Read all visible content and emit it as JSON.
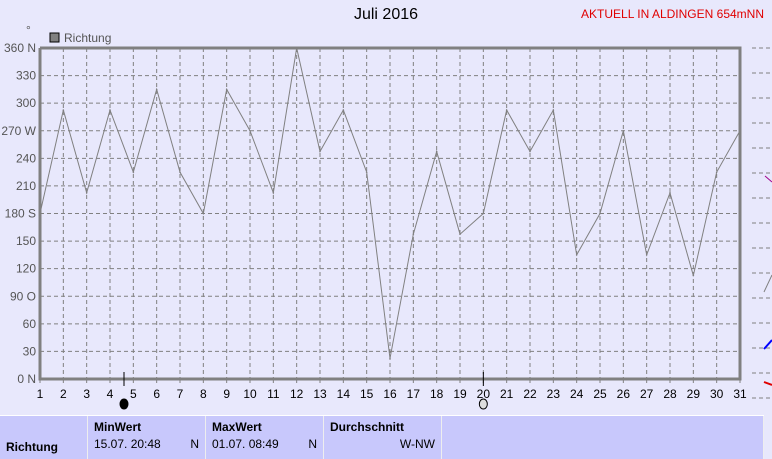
{
  "title": "Juli 2016",
  "station": "AKTUELL IN ALDINGEN 654mNN",
  "chart_data": {
    "type": "line",
    "legend": "Richtung",
    "legend_position": "top-left",
    "unit_mark": "°",
    "x": [
      1,
      2,
      3,
      4,
      5,
      6,
      7,
      8,
      9,
      10,
      11,
      12,
      13,
      14,
      15,
      16,
      17,
      18,
      19,
      20,
      21,
      22,
      23,
      24,
      25,
      26,
      27,
      28,
      29,
      30,
      31
    ],
    "series": [
      {
        "name": "Richtung",
        "color": "#808080",
        "values": [
          180,
          292.5,
          202.5,
          292.5,
          225,
          315,
          225,
          180,
          315,
          270,
          202.5,
          360,
          247.5,
          292.5,
          225,
          22.5,
          157.5,
          247.5,
          157.5,
          180,
          292.5,
          247.5,
          292.5,
          135,
          180,
          270,
          135,
          202.5,
          112.5,
          225,
          270
        ]
      }
    ],
    "ylim": [
      0,
      360
    ],
    "yticks": [
      {
        "v": 360,
        "l": "360 N"
      },
      {
        "v": 330,
        "l": "330"
      },
      {
        "v": 300,
        "l": "300"
      },
      {
        "v": 270,
        "l": "270 W"
      },
      {
        "v": 240,
        "l": "240"
      },
      {
        "v": 210,
        "l": "210"
      },
      {
        "v": 180,
        "l": "180 S"
      },
      {
        "v": 150,
        "l": "150"
      },
      {
        "v": 120,
        "l": "120"
      },
      {
        "v": 90,
        "l": "90  O"
      },
      {
        "v": 60,
        "l": "60"
      },
      {
        "v": 30,
        "l": "30"
      },
      {
        "v": 0,
        "l": "0   N"
      }
    ],
    "grid": true,
    "moon_phases": [
      {
        "day": 4.6,
        "phase": "new-moon"
      },
      {
        "day": 20,
        "phase": "full-moon"
      }
    ]
  },
  "table": {
    "row_label": "Richtung",
    "cols": [
      {
        "header": "MinWert",
        "date": "15.07.  20:48",
        "value": "N"
      },
      {
        "header": "MaxWert",
        "date": "01.07.  08:49",
        "value": "N"
      },
      {
        "header": "Durchschnitt",
        "date": "",
        "value": "W-NW"
      }
    ]
  }
}
